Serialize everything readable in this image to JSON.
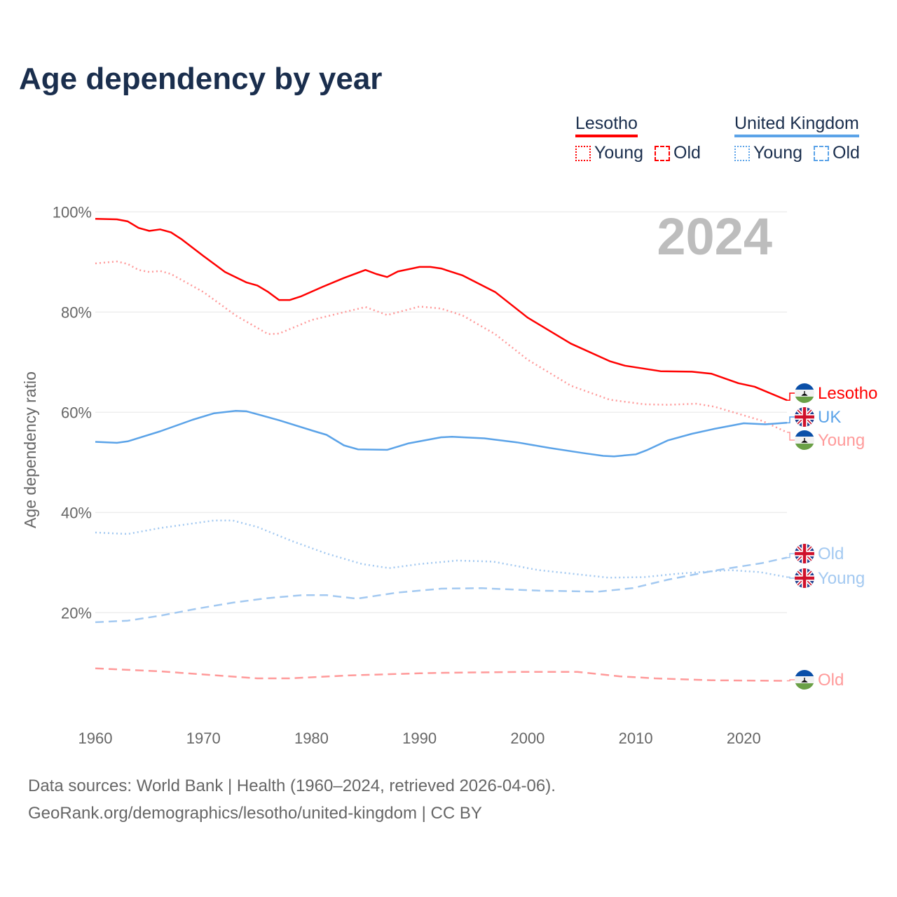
{
  "title": "Age dependency by year",
  "legend": {
    "groups": [
      {
        "country": "Lesotho",
        "color": "#ff0000",
        "light": "#ff9a9a",
        "items": [
          "Young",
          "Old"
        ]
      },
      {
        "country": "United Kingdom",
        "color": "#5ba3e8",
        "light": "#a3c9f1",
        "items": [
          "Young",
          "Old"
        ]
      }
    ]
  },
  "year_watermark": "2024",
  "footer": {
    "line1": "Data sources: World Bank | Health (1960–2024, retrieved 2026-04-06).",
    "line2": "GeoRank.org/demographics/lesotho/united-kingdom | CC BY"
  },
  "chart_data": {
    "type": "line",
    "title": "Age dependency by year",
    "xlabel": "",
    "ylabel": "Age dependency ratio",
    "xlim": [
      1960,
      2024
    ],
    "ylim": [
      0,
      100
    ],
    "x_ticks": [
      1960,
      1970,
      1980,
      1990,
      2000,
      2010,
      2020
    ],
    "y_ticks": [
      20,
      40,
      60,
      80,
      100
    ],
    "y_tick_labels": [
      "20%",
      "40%",
      "60%",
      "80%",
      "100%"
    ],
    "grid": true,
    "series": [
      {
        "name": "Lesotho",
        "label": "Lesotho",
        "flag": "lesotho",
        "style": "solid",
        "color": "#ff0000",
        "points": [
          [
            1960,
            98.6
          ],
          [
            1962,
            98.5
          ],
          [
            1963,
            98.1
          ],
          [
            1964,
            96.8
          ],
          [
            1965,
            96.2
          ],
          [
            1966,
            96.5
          ],
          [
            1967,
            95.9
          ],
          [
            1968,
            94.5
          ],
          [
            1970,
            91.2
          ],
          [
            1972,
            88.0
          ],
          [
            1974,
            85.9
          ],
          [
            1975,
            85.3
          ],
          [
            1976,
            84.0
          ],
          [
            1977,
            82.4
          ],
          [
            1978,
            82.4
          ],
          [
            1979,
            83.1
          ],
          [
            1981,
            85.0
          ],
          [
            1983,
            86.8
          ],
          [
            1985,
            88.4
          ],
          [
            1986,
            87.6
          ],
          [
            1987,
            87.0
          ],
          [
            1988,
            88.1
          ],
          [
            1990,
            89.0
          ],
          [
            1991,
            89.0
          ],
          [
            1992,
            88.7
          ],
          [
            1994,
            87.3
          ],
          [
            1997,
            84.0
          ],
          [
            2000,
            78.9
          ],
          [
            2004,
            73.7
          ],
          [
            2007.6,
            70.2
          ],
          [
            2009,
            69.3
          ],
          [
            2012.3,
            68.2
          ],
          [
            2015.2,
            68.1
          ],
          [
            2017,
            67.7
          ],
          [
            2019.5,
            65.8
          ],
          [
            2021,
            65.1
          ],
          [
            2024,
            62.4
          ]
        ]
      },
      {
        "name": "Lesotho Young",
        "label": "Young",
        "flag": "lesotho",
        "style": "dotted",
        "color": "#ff9a9a",
        "points": [
          [
            1960,
            89.7
          ],
          [
            1962,
            90.1
          ],
          [
            1963,
            89.6
          ],
          [
            1964,
            88.4
          ],
          [
            1965,
            88.0
          ],
          [
            1966,
            88.2
          ],
          [
            1967,
            87.6
          ],
          [
            1970,
            84.0
          ],
          [
            1973,
            79.3
          ],
          [
            1976,
            75.6
          ],
          [
            1977,
            75.7
          ],
          [
            1980,
            78.4
          ],
          [
            1985,
            81.0
          ],
          [
            1987,
            79.4
          ],
          [
            1990,
            81.1
          ],
          [
            1992,
            80.7
          ],
          [
            1994,
            79.3
          ],
          [
            1997,
            75.6
          ],
          [
            2000,
            70.5
          ],
          [
            2004,
            65.3
          ],
          [
            2007.6,
            62.5
          ],
          [
            2010.8,
            61.6
          ],
          [
            2013,
            61.5
          ],
          [
            2015.6,
            61.7
          ],
          [
            2017.3,
            61.1
          ],
          [
            2019.5,
            59.7
          ],
          [
            2021.7,
            58.3
          ],
          [
            2024,
            56.0
          ]
        ]
      },
      {
        "name": "Lesotho Old",
        "label": "Old",
        "flag": "lesotho",
        "style": "dashed",
        "color": "#ff9a9a",
        "points": [
          [
            1960,
            8.9
          ],
          [
            1966,
            8.3
          ],
          [
            1970.5,
            7.6
          ],
          [
            1975,
            6.9
          ],
          [
            1978,
            6.9
          ],
          [
            1983.6,
            7.5
          ],
          [
            1990,
            7.9
          ],
          [
            1992,
            8.0
          ],
          [
            2000,
            8.2
          ],
          [
            2004.6,
            8.2
          ],
          [
            2008.5,
            7.3
          ],
          [
            2011.8,
            6.9
          ],
          [
            2017.3,
            6.5
          ],
          [
            2024,
            6.4
          ]
        ]
      },
      {
        "name": "UK",
        "label": "UK",
        "flag": "uk",
        "style": "solid",
        "color": "#5ba3e8",
        "points": [
          [
            1960,
            54.1
          ],
          [
            1962,
            53.9
          ],
          [
            1963,
            54.2
          ],
          [
            1966,
            56.2
          ],
          [
            1969,
            58.5
          ],
          [
            1971,
            59.8
          ],
          [
            1973,
            60.3
          ],
          [
            1974,
            60.2
          ],
          [
            1977,
            58.4
          ],
          [
            1980.3,
            56.2
          ],
          [
            1981.4,
            55.5
          ],
          [
            1983,
            53.4
          ],
          [
            1984.3,
            52.6
          ],
          [
            1987,
            52.5
          ],
          [
            1989,
            53.8
          ],
          [
            1992,
            55.0
          ],
          [
            1993,
            55.1
          ],
          [
            1996,
            54.8
          ],
          [
            1999,
            54.0
          ],
          [
            2002,
            52.9
          ],
          [
            2005,
            51.9
          ],
          [
            2007,
            51.3
          ],
          [
            2008,
            51.2
          ],
          [
            2010,
            51.6
          ],
          [
            2011,
            52.4
          ],
          [
            2013,
            54.4
          ],
          [
            2015.2,
            55.7
          ],
          [
            2017.3,
            56.7
          ],
          [
            2020,
            57.8
          ],
          [
            2022,
            57.6
          ],
          [
            2024,
            57.9
          ]
        ]
      },
      {
        "name": "UK Young",
        "label": "Young",
        "flag": "uk",
        "style": "dotted",
        "color": "#a3c9f1",
        "points": [
          [
            1960,
            36.0
          ],
          [
            1963,
            35.7
          ],
          [
            1966,
            36.9
          ],
          [
            1971,
            38.4
          ],
          [
            1972.7,
            38.4
          ],
          [
            1975,
            37.1
          ],
          [
            1978.2,
            34.3
          ],
          [
            1981.4,
            31.8
          ],
          [
            1984.7,
            29.7
          ],
          [
            1987.2,
            28.9
          ],
          [
            1990,
            29.7
          ],
          [
            1993.5,
            30.4
          ],
          [
            1996.8,
            30.2
          ],
          [
            2001,
            28.5
          ],
          [
            2007.5,
            27.0
          ],
          [
            2010.8,
            27.1
          ],
          [
            2014,
            27.8
          ],
          [
            2018.7,
            28.5
          ],
          [
            2021.5,
            28.1
          ],
          [
            2024,
            27.1
          ]
        ]
      },
      {
        "name": "UK Old",
        "label": "Old",
        "flag": "uk",
        "style": "dashed",
        "color": "#a3c9f1",
        "points": [
          [
            1960,
            18.1
          ],
          [
            1963,
            18.4
          ],
          [
            1966,
            19.4
          ],
          [
            1969.4,
            20.8
          ],
          [
            1972.7,
            22.0
          ],
          [
            1975.9,
            22.9
          ],
          [
            1979.1,
            23.5
          ],
          [
            1981.4,
            23.5
          ],
          [
            1984.2,
            22.8
          ],
          [
            1987.9,
            24.0
          ],
          [
            1992,
            24.8
          ],
          [
            1995.7,
            24.9
          ],
          [
            2001,
            24.4
          ],
          [
            2006.5,
            24.2
          ],
          [
            2009.7,
            24.9
          ],
          [
            2013,
            26.6
          ],
          [
            2017.3,
            28.4
          ],
          [
            2021.7,
            29.9
          ],
          [
            2024,
            31.0
          ]
        ]
      }
    ]
  }
}
